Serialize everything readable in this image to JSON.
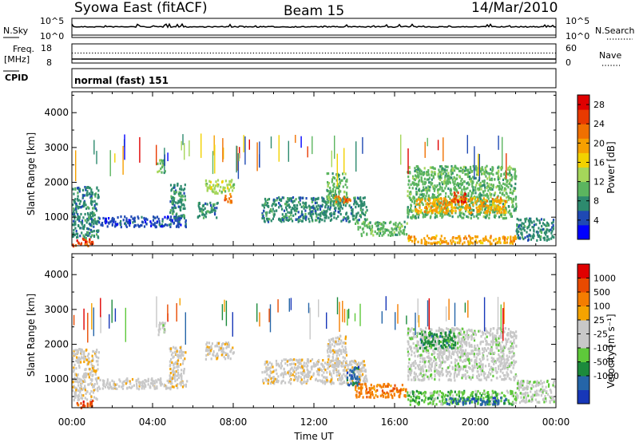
{
  "header": {
    "left": "Syowa East (fitACF)",
    "center": "Beam 15",
    "right": "14/Mar/2010"
  },
  "strips": {
    "nsky_label": "N.Sky",
    "nsearch_label": "N.Search",
    "nsky_scale": [
      "10^5",
      "10^0"
    ],
    "nsearch_scale": [
      "10^5",
      "10^0"
    ],
    "freq_label": "Freq.",
    "freq_unit": "[MHz]",
    "freq_scale": [
      "18",
      "8"
    ],
    "nave_label": "Nave",
    "nave_scale": [
      "60",
      "0"
    ],
    "cpid_label": "CPID",
    "program": "normal (fast) 151"
  },
  "x_axis": {
    "title": "Time UT",
    "ticks": [
      "00:00",
      "04:00",
      "08:00",
      "12:00",
      "16:00",
      "20:00",
      "00:00"
    ],
    "range_hours": [
      0,
      24
    ]
  },
  "chart_data": [
    {
      "type": "heatmap",
      "name": "power",
      "ylabel": "Slant Range [km]",
      "yticks": [
        "1000",
        "2000",
        "3000",
        "4000"
      ],
      "ylim": [
        180,
        4600
      ],
      "xlim_hours": [
        0,
        24
      ],
      "colorbar": {
        "label": "Power [dB]",
        "ticks": [
          "4",
          "8",
          "12",
          "16",
          "20",
          "24",
          "28"
        ],
        "range": [
          0,
          30
        ],
        "colors": [
          "#0000ff",
          "#1f49b4",
          "#2d8a6e",
          "#5bb55f",
          "#a5d65a",
          "#f2d200",
          "#f6a000",
          "#f07000",
          "#e83a00",
          "#e00000"
        ]
      },
      "regions": [
        {
          "t": [
            0.0,
            1.0
          ],
          "r": [
            200,
            420
          ],
          "v": 25
        },
        {
          "t": [
            0.0,
            1.3
          ],
          "r": [
            420,
            1900
          ],
          "v": 7
        },
        {
          "t": [
            1.3,
            5.7
          ],
          "r": [
            750,
            1050
          ],
          "v": 5
        },
        {
          "t": [
            4.2,
            4.6
          ],
          "r": [
            2300,
            2700
          ],
          "v": 9
        },
        {
          "t": [
            4.8,
            5.6
          ],
          "r": [
            1000,
            2000
          ],
          "v": 7
        },
        {
          "t": [
            6.6,
            8.0
          ],
          "r": [
            1700,
            2100
          ],
          "v": 13
        },
        {
          "t": [
            7.5,
            7.9
          ],
          "r": [
            1450,
            1700
          ],
          "v": 21
        },
        {
          "t": [
            6.2,
            7.2
          ],
          "r": [
            1000,
            1450
          ],
          "v": 8
        },
        {
          "t": [
            9.4,
            14.6
          ],
          "r": [
            900,
            1600
          ],
          "v": 6
        },
        {
          "t": [
            12.6,
            13.6
          ],
          "r": [
            1400,
            2300
          ],
          "v": 10
        },
        {
          "t": [
            13.0,
            13.8
          ],
          "r": [
            1450,
            1650
          ],
          "v": 21
        },
        {
          "t": [
            14.0,
            16.6
          ],
          "r": [
            500,
            900
          ],
          "v": 9
        },
        {
          "t": [
            16.6,
            22.0
          ],
          "r": [
            1000,
            2500
          ],
          "v": 10
        },
        {
          "t": [
            17.0,
            21.5
          ],
          "r": [
            1150,
            1600
          ],
          "v": 20
        },
        {
          "t": [
            16.6,
            22.0
          ],
          "r": [
            260,
            500
          ],
          "v": 18
        },
        {
          "t": [
            18.8,
            19.5
          ],
          "r": [
            1450,
            1750
          ],
          "v": 24
        },
        {
          "t": [
            22.0,
            23.9
          ],
          "r": [
            350,
            1000
          ],
          "v": 7
        }
      ]
    },
    {
      "type": "heatmap",
      "name": "velocity",
      "ylabel": "Slant Range [km]",
      "yticks": [
        "1000",
        "2000",
        "3000",
        "4000"
      ],
      "ylim": [
        180,
        4600
      ],
      "xlim_hours": [
        0,
        24
      ],
      "colorbar": {
        "label": "Velocity [m s⁻¹]",
        "ticks": [
          "1000",
          "500",
          "100",
          "25",
          "-25",
          "-100",
          "-500",
          "-1000"
        ],
        "colors": [
          "#1737b8",
          "#2565a8",
          "#1c8a3c",
          "#5ec93a",
          "#c8c8c8",
          "#c8c8c8",
          "#f5a300",
          "#f47d00",
          "#e84a00",
          "#e00000"
        ]
      },
      "regions": [
        {
          "t": [
            0.0,
            1.0
          ],
          "r": [
            200,
            420
          ],
          "v": 8
        },
        {
          "t": [
            0.0,
            1.3
          ],
          "r": [
            420,
            1900
          ],
          "v": 5
        },
        {
          "t": [
            1.3,
            5.7
          ],
          "r": [
            750,
            1050
          ],
          "v": 5
        },
        {
          "t": [
            4.2,
            4.6
          ],
          "r": [
            2300,
            2700
          ],
          "v": 4
        },
        {
          "t": [
            4.8,
            5.6
          ],
          "r": [
            1000,
            2000
          ],
          "v": 5
        },
        {
          "t": [
            6.6,
            8.0
          ],
          "r": [
            1600,
            2100
          ],
          "v": 5
        },
        {
          "t": [
            9.4,
            14.6
          ],
          "r": [
            900,
            1600
          ],
          "v": 5
        },
        {
          "t": [
            12.6,
            13.6
          ],
          "r": [
            1400,
            2300
          ],
          "v": 5
        },
        {
          "t": [
            13.6,
            14.2
          ],
          "r": [
            800,
            1400
          ],
          "v": 1
        },
        {
          "t": [
            14.0,
            16.6
          ],
          "r": [
            500,
            900
          ],
          "v": 7
        },
        {
          "t": [
            16.6,
            22.0
          ],
          "r": [
            1000,
            2500
          ],
          "v": 4
        },
        {
          "t": [
            17.2,
            19.0
          ],
          "r": [
            1900,
            2400
          ],
          "v": 2
        },
        {
          "t": [
            16.6,
            22.0
          ],
          "r": [
            300,
            700
          ],
          "v": 3
        },
        {
          "t": [
            18.5,
            21.5
          ],
          "r": [
            300,
            500
          ],
          "v": 1
        },
        {
          "t": [
            22.0,
            23.9
          ],
          "r": [
            350,
            1000
          ],
          "v": 4
        }
      ]
    }
  ]
}
